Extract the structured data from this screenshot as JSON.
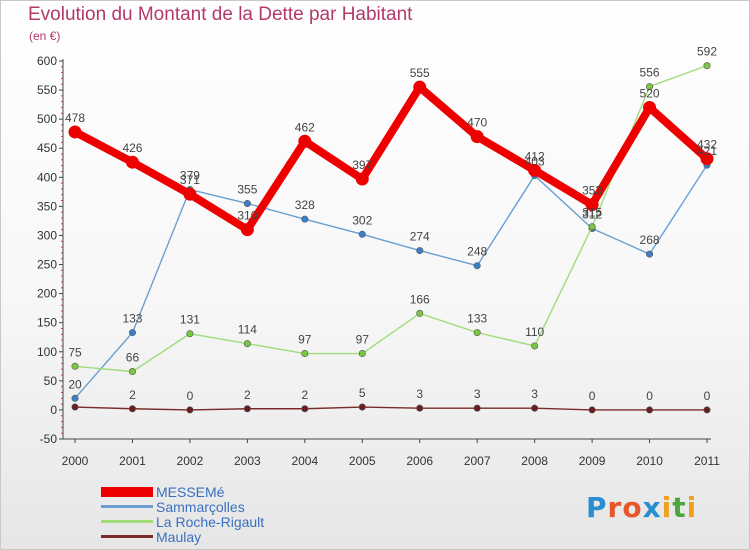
{
  "header": {
    "title": "Evolution du Montant de la Dette par Habitant",
    "subtitle": "(en €)"
  },
  "logo": {
    "text": "Proxiti",
    "letters": [
      "P",
      "r",
      "o",
      "x",
      "i",
      "t",
      "i"
    ],
    "letter_colors": [
      "#2a8fd0",
      "#e8572a",
      "#e8572a",
      "#2a8fd0",
      "#f0a020",
      "#4aa83a",
      "#f0a020"
    ]
  },
  "chart_data": {
    "type": "line",
    "title": "Evolution du Montant de la Dette par Habitant",
    "subtitle": "(en €)",
    "xlabel": "",
    "ylabel": "",
    "x": [
      "2000",
      "2001",
      "2002",
      "2003",
      "2004",
      "2005",
      "2006",
      "2007",
      "2008",
      "2009",
      "2010",
      "2011"
    ],
    "ylim": [
      -50,
      600
    ],
    "yticks": [
      -50,
      0,
      50,
      100,
      150,
      200,
      250,
      300,
      350,
      400,
      450,
      500,
      550,
      600
    ],
    "grid": false,
    "legend_position": "bottom-left",
    "series": [
      {
        "name": "Sammarçolles",
        "color": "#6a9fd0",
        "marker_color": "#3a80c8",
        "values": [
          20,
          133,
          379,
          355,
          328,
          302,
          274,
          248,
          403,
          312,
          268,
          421
        ],
        "labels": [
          "20",
          "133",
          "379",
          "355",
          "328",
          "302",
          "274",
          "248",
          "403",
          "312",
          "268",
          "421"
        ]
      },
      {
        "name": "La Roche-Rigault",
        "color": "#a0dc7a",
        "marker_color": "#78c840",
        "values": [
          75,
          66,
          131,
          114,
          97,
          97,
          166,
          133,
          110,
          315,
          556,
          592
        ],
        "labels": [
          "75",
          "66",
          "131",
          "114",
          "97",
          "97",
          "166",
          "133",
          "110",
          "315",
          "556",
          "592"
        ]
      },
      {
        "name": "Maulay",
        "color": "#7a2a2a",
        "marker_color": "#6a1e1e",
        "values": [
          5,
          2,
          0,
          2,
          2,
          5,
          3,
          3,
          3,
          0,
          0,
          0
        ],
        "labels": [
          "",
          "2",
          "0",
          "2",
          "2",
          "5",
          "3",
          "3",
          "3",
          "0",
          "0",
          "0"
        ]
      },
      {
        "name": "MESSEMé",
        "color": "#ee0000",
        "marker_color": "#ee0000",
        "values": [
          478,
          426,
          371,
          310,
          462,
          397,
          555,
          470,
          412,
          353,
          520,
          432
        ],
        "labels": [
          "478",
          "426",
          "371",
          "310",
          "462",
          "397",
          "555",
          "470",
          "412",
          "353",
          "520",
          "432"
        ]
      }
    ],
    "legend_order": [
      3,
      0,
      1,
      2
    ]
  }
}
